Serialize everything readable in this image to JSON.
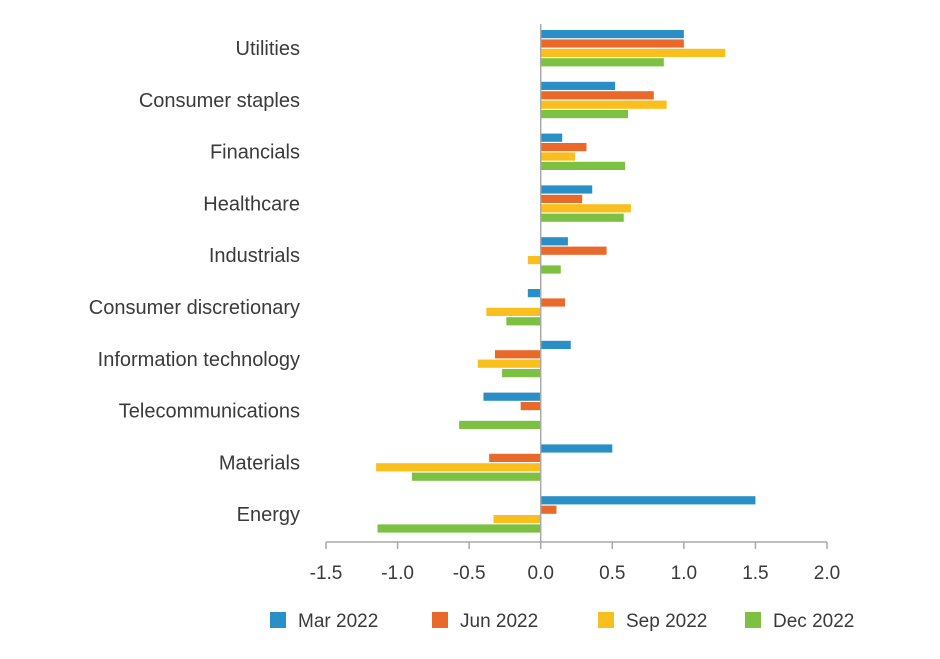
{
  "chart_data": {
    "type": "bar",
    "orientation": "horizontal",
    "title": "",
    "xlabel": "",
    "ylabel": "",
    "categories": [
      "Utilities",
      "Consumer staples",
      "Financials",
      "Healthcare",
      "Industrials",
      "Consumer discretionary",
      "Information technology",
      "Telecommunications",
      "Materials",
      "Energy"
    ],
    "series": [
      {
        "name": "Mar 2022",
        "color": "#2a8fc7",
        "values": [
          1.0,
          0.52,
          0.15,
          0.36,
          0.19,
          -0.09,
          0.21,
          -0.4,
          0.5,
          1.5
        ]
      },
      {
        "name": "Jun 2022",
        "color": "#e8692a",
        "values": [
          1.0,
          0.79,
          0.32,
          0.29,
          0.46,
          0.17,
          -0.32,
          -0.14,
          -0.36,
          0.11
        ]
      },
      {
        "name": "Sep 2022",
        "color": "#f9bf1c",
        "values": [
          1.29,
          0.88,
          0.24,
          0.63,
          -0.09,
          -0.38,
          -0.44,
          0.0,
          -1.15,
          -0.33
        ]
      },
      {
        "name": "Dec 2022",
        "color": "#7cc142",
        "values": [
          0.86,
          0.61,
          0.59,
          0.58,
          0.14,
          -0.24,
          -0.27,
          -0.57,
          -0.9,
          -1.14
        ]
      }
    ],
    "xlim": [
      -1.5,
      2.0
    ],
    "xticks": [
      "-1.5",
      "-1.0",
      "-0.5",
      "0.0",
      "0.5",
      "1.0",
      "1.5",
      "2.0"
    ],
    "legend_position": "bottom",
    "grid": false
  }
}
